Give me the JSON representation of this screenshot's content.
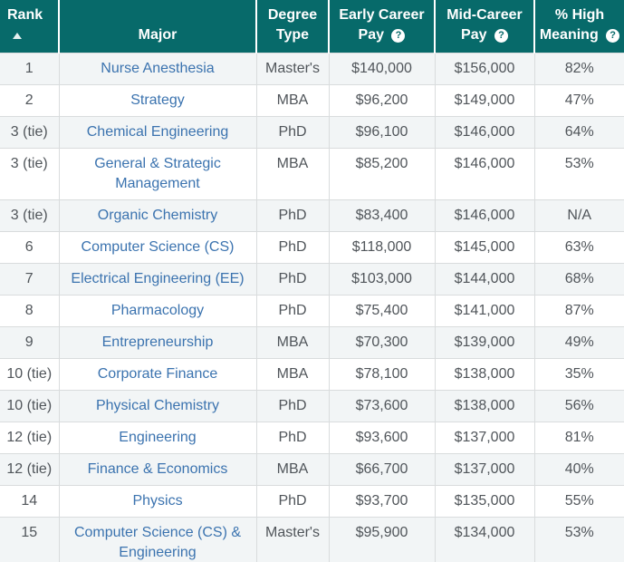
{
  "table": {
    "help_glyph": "?",
    "sort": {
      "column": "Rank",
      "direction": "ascending"
    },
    "columns": [
      {
        "id": "rank",
        "label": "Rank",
        "sorted": true,
        "help": false
      },
      {
        "id": "major",
        "label": "Major",
        "sorted": false,
        "help": false
      },
      {
        "id": "degree",
        "label": "Degree Type",
        "sorted": false,
        "help": false
      },
      {
        "id": "early",
        "label": "Early Career Pay",
        "sorted": false,
        "help": true
      },
      {
        "id": "mid",
        "label": "Mid-Career Pay",
        "sorted": false,
        "help": true
      },
      {
        "id": "meaning",
        "label": "% High Meaning",
        "sorted": false,
        "help": true
      }
    ],
    "rows": [
      {
        "rank": "1",
        "major": "Nurse Anesthesia",
        "degree": "Master's",
        "early": "$140,000",
        "mid": "$156,000",
        "meaning": "82%"
      },
      {
        "rank": "2",
        "major": "Strategy",
        "degree": "MBA",
        "early": "$96,200",
        "mid": "$149,000",
        "meaning": "47%"
      },
      {
        "rank": "3 (tie)",
        "major": "Chemical Engineering",
        "degree": "PhD",
        "early": "$96,100",
        "mid": "$146,000",
        "meaning": "64%"
      },
      {
        "rank": "3 (tie)",
        "major": "General & Strategic Management",
        "degree": "MBA",
        "early": "$85,200",
        "mid": "$146,000",
        "meaning": "53%"
      },
      {
        "rank": "3 (tie)",
        "major": "Organic Chemistry",
        "degree": "PhD",
        "early": "$83,400",
        "mid": "$146,000",
        "meaning": "N/A"
      },
      {
        "rank": "6",
        "major": "Computer Science (CS)",
        "degree": "PhD",
        "early": "$118,000",
        "mid": "$145,000",
        "meaning": "63%"
      },
      {
        "rank": "7",
        "major": "Electrical Engineering (EE)",
        "degree": "PhD",
        "early": "$103,000",
        "mid": "$144,000",
        "meaning": "68%"
      },
      {
        "rank": "8",
        "major": "Pharmacology",
        "degree": "PhD",
        "early": "$75,400",
        "mid": "$141,000",
        "meaning": "87%"
      },
      {
        "rank": "9",
        "major": "Entrepreneurship",
        "degree": "MBA",
        "early": "$70,300",
        "mid": "$139,000",
        "meaning": "49%"
      },
      {
        "rank": "10 (tie)",
        "major": "Corporate Finance",
        "degree": "MBA",
        "early": "$78,100",
        "mid": "$138,000",
        "meaning": "35%"
      },
      {
        "rank": "10 (tie)",
        "major": "Physical Chemistry",
        "degree": "PhD",
        "early": "$73,600",
        "mid": "$138,000",
        "meaning": "56%"
      },
      {
        "rank": "12 (tie)",
        "major": "Engineering",
        "degree": "PhD",
        "early": "$93,600",
        "mid": "$137,000",
        "meaning": "81%"
      },
      {
        "rank": "12 (tie)",
        "major": "Finance & Economics",
        "degree": "MBA",
        "early": "$66,700",
        "mid": "$137,000",
        "meaning": "40%"
      },
      {
        "rank": "14",
        "major": "Physics",
        "degree": "PhD",
        "early": "$93,700",
        "mid": "$135,000",
        "meaning": "55%"
      },
      {
        "rank": "15",
        "major": "Computer Science (CS) & Engineering",
        "degree": "Master's",
        "early": "$95,900",
        "mid": "$134,000",
        "meaning": "53%"
      }
    ]
  },
  "colors": {
    "header_bg": "#076a6a",
    "header_text": "#ffffff",
    "link": "#3b73af",
    "body_text": "#50555a",
    "stripe_row": "#f2f5f6",
    "grid_border": "#d9dcdd"
  }
}
